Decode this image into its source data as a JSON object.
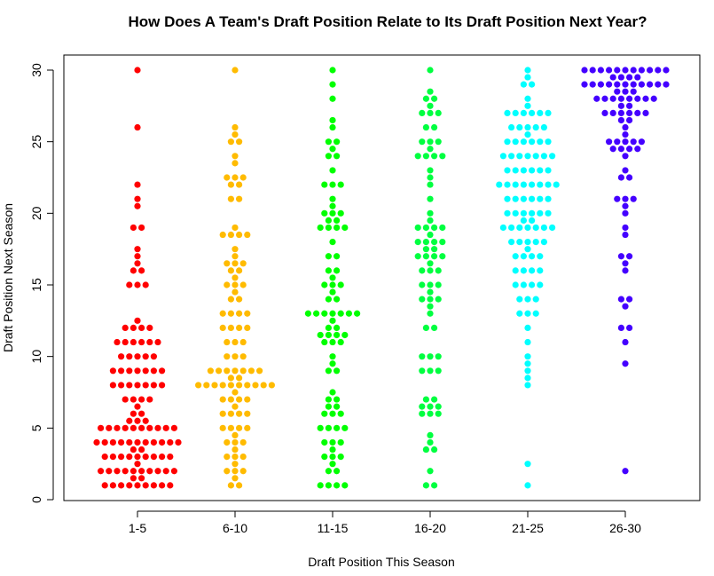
{
  "chart_data": {
    "type": "scatter",
    "subtype": "beeswarm",
    "title": "How Does A Team's Draft Position Relate to Its Draft Position Next Year?",
    "xlabel": "Draft Position This Season",
    "ylabel": "Draft Position Next Season",
    "ylim": [
      0,
      30
    ],
    "yticks": [
      "0",
      "5",
      "10",
      "15",
      "20",
      "25",
      "30"
    ],
    "grid": false,
    "categories": [
      "1-5",
      "6-10",
      "11-15",
      "16-20",
      "21-25",
      "26-30"
    ],
    "series": [
      {
        "name": "1-5",
        "color": "#ff0000",
        "values": [
          30,
          26,
          22,
          21,
          20.5,
          19,
          19,
          17.5,
          17,
          16.5,
          16,
          16,
          15,
          15,
          15,
          12.5,
          12,
          12,
          12,
          12,
          11,
          11,
          11,
          11,
          11,
          11,
          10,
          10,
          10,
          10,
          10,
          9,
          9,
          9,
          9,
          9,
          9,
          9,
          8,
          8,
          8,
          8,
          8,
          8,
          8,
          7,
          7,
          7,
          7,
          6.5,
          6,
          6,
          5.5,
          5.5,
          5.5,
          5,
          5,
          5,
          5,
          5,
          5,
          5,
          5,
          5,
          5,
          4,
          4,
          4,
          4,
          4,
          4,
          4,
          4,
          4,
          4,
          4,
          3.5,
          3.5,
          3,
          3,
          3,
          3,
          3,
          3,
          3,
          3,
          3,
          2.5,
          2,
          2,
          2,
          2,
          2,
          2,
          2,
          2,
          2,
          2,
          1.5,
          1.5,
          1,
          1,
          1,
          1,
          1,
          1,
          1,
          1,
          1
        ]
      },
      {
        "name": "6-10",
        "color": "#ffbb00",
        "values": [
          30,
          26,
          25.5,
          25,
          25,
          24,
          23.5,
          22.5,
          22.5,
          22.5,
          22,
          22,
          21,
          21,
          19,
          18.5,
          18.5,
          18.5,
          18.5,
          17.5,
          17,
          16.5,
          16.5,
          16.5,
          16,
          16,
          15.5,
          15,
          15,
          15,
          14.5,
          14,
          14,
          13,
          13,
          13,
          13,
          12,
          12,
          12,
          12,
          11,
          11,
          11,
          10,
          10,
          10,
          9,
          9,
          9,
          9,
          9,
          9,
          9,
          8.5,
          8.5,
          8,
          8,
          8,
          8,
          8,
          8,
          8,
          8,
          8,
          8,
          7.5,
          7,
          7,
          7,
          7,
          6.5,
          6,
          6,
          6,
          6,
          5,
          5,
          5,
          5,
          4.5,
          4,
          4,
          4,
          3.5,
          3,
          3,
          3,
          2.5,
          2,
          2,
          2,
          1.5,
          1,
          1
        ]
      },
      {
        "name": "11-15",
        "color": "#00ff00",
        "values": [
          30,
          29,
          28,
          26.5,
          26,
          25,
          25,
          24.5,
          24,
          24,
          23,
          22,
          22,
          22,
          21,
          20.5,
          20,
          20,
          20,
          19.5,
          19.5,
          19,
          19,
          19,
          19,
          18,
          17,
          17,
          16,
          16,
          15.5,
          15,
          15,
          15,
          14.5,
          14,
          14,
          13,
          13,
          13,
          13,
          13,
          13,
          13,
          12.5,
          12,
          12,
          11.5,
          11.5,
          11.5,
          11.5,
          11,
          11,
          11,
          10,
          9.5,
          9,
          9,
          7.5,
          7,
          7,
          6.5,
          6.5,
          6,
          6,
          6,
          5,
          5,
          5,
          5,
          4,
          4,
          4,
          3.5,
          3,
          3,
          3,
          2.5,
          2,
          2,
          1,
          1,
          1,
          1
        ]
      },
      {
        "name": "16-20",
        "color": "#00ff40",
        "values": [
          30,
          28.5,
          28,
          28,
          27.5,
          27,
          27,
          27,
          26,
          26,
          25,
          25,
          25,
          24.5,
          24,
          24,
          24,
          24,
          23,
          22.5,
          22,
          21,
          20,
          19.5,
          19,
          19,
          19,
          19,
          18.5,
          18,
          18,
          18,
          18,
          17.5,
          17.5,
          17,
          17,
          17,
          17,
          16.5,
          16,
          16,
          16,
          15,
          15,
          15,
          14.5,
          14,
          14,
          14,
          13.5,
          13,
          12,
          12,
          10,
          10,
          10,
          9,
          9,
          9,
          7,
          7,
          6.5,
          6.5,
          6.5,
          6,
          6,
          6,
          4.5,
          4,
          3.5,
          3.5,
          2,
          1,
          1
        ]
      },
      {
        "name": "21-25",
        "color": "#00ffff",
        "values": [
          30,
          29.5,
          29,
          29,
          28,
          27.5,
          27,
          27,
          27,
          27,
          27,
          27,
          26,
          26,
          26,
          26,
          26,
          25.5,
          25,
          25,
          25,
          25,
          25,
          25,
          24,
          24,
          24,
          24,
          24,
          24,
          24,
          23,
          23,
          23,
          23,
          23,
          23,
          22,
          22,
          22,
          22,
          22,
          22,
          22,
          22,
          21,
          21,
          21,
          21,
          21,
          21,
          20,
          20,
          20,
          20,
          20,
          20,
          19.5,
          19.5,
          19,
          19,
          19,
          19,
          19,
          19,
          19,
          18,
          18,
          18,
          18,
          18,
          17.5,
          17,
          17,
          17,
          17,
          16,
          16,
          16,
          16,
          15,
          15,
          15,
          15,
          14,
          14,
          14,
          13,
          13,
          13,
          12,
          11,
          10,
          9.5,
          9,
          8.5,
          8,
          2.5,
          1
        ]
      },
      {
        "name": "26-30",
        "color": "#4400ff",
        "values": [
          30,
          30,
          30,
          30,
          30,
          30,
          30,
          30,
          30,
          30,
          30,
          29.5,
          29.5,
          29.5,
          29.5,
          29,
          29,
          29,
          29,
          29,
          29,
          29,
          29,
          29,
          29,
          29,
          28.5,
          28.5,
          28.5,
          28,
          28,
          28,
          28,
          28,
          28,
          28,
          28,
          27.5,
          27.5,
          27,
          27,
          27,
          27,
          27,
          27,
          26.5,
          26.5,
          26,
          25.5,
          25,
          25,
          25,
          25,
          25,
          24.5,
          24.5,
          24.5,
          24.5,
          24,
          23,
          22.5,
          22.5,
          21,
          21,
          21,
          20.5,
          20,
          19,
          18.5,
          17,
          17,
          16.5,
          16,
          14,
          14,
          13.5,
          12,
          12,
          11,
          9.5,
          2
        ]
      }
    ]
  }
}
